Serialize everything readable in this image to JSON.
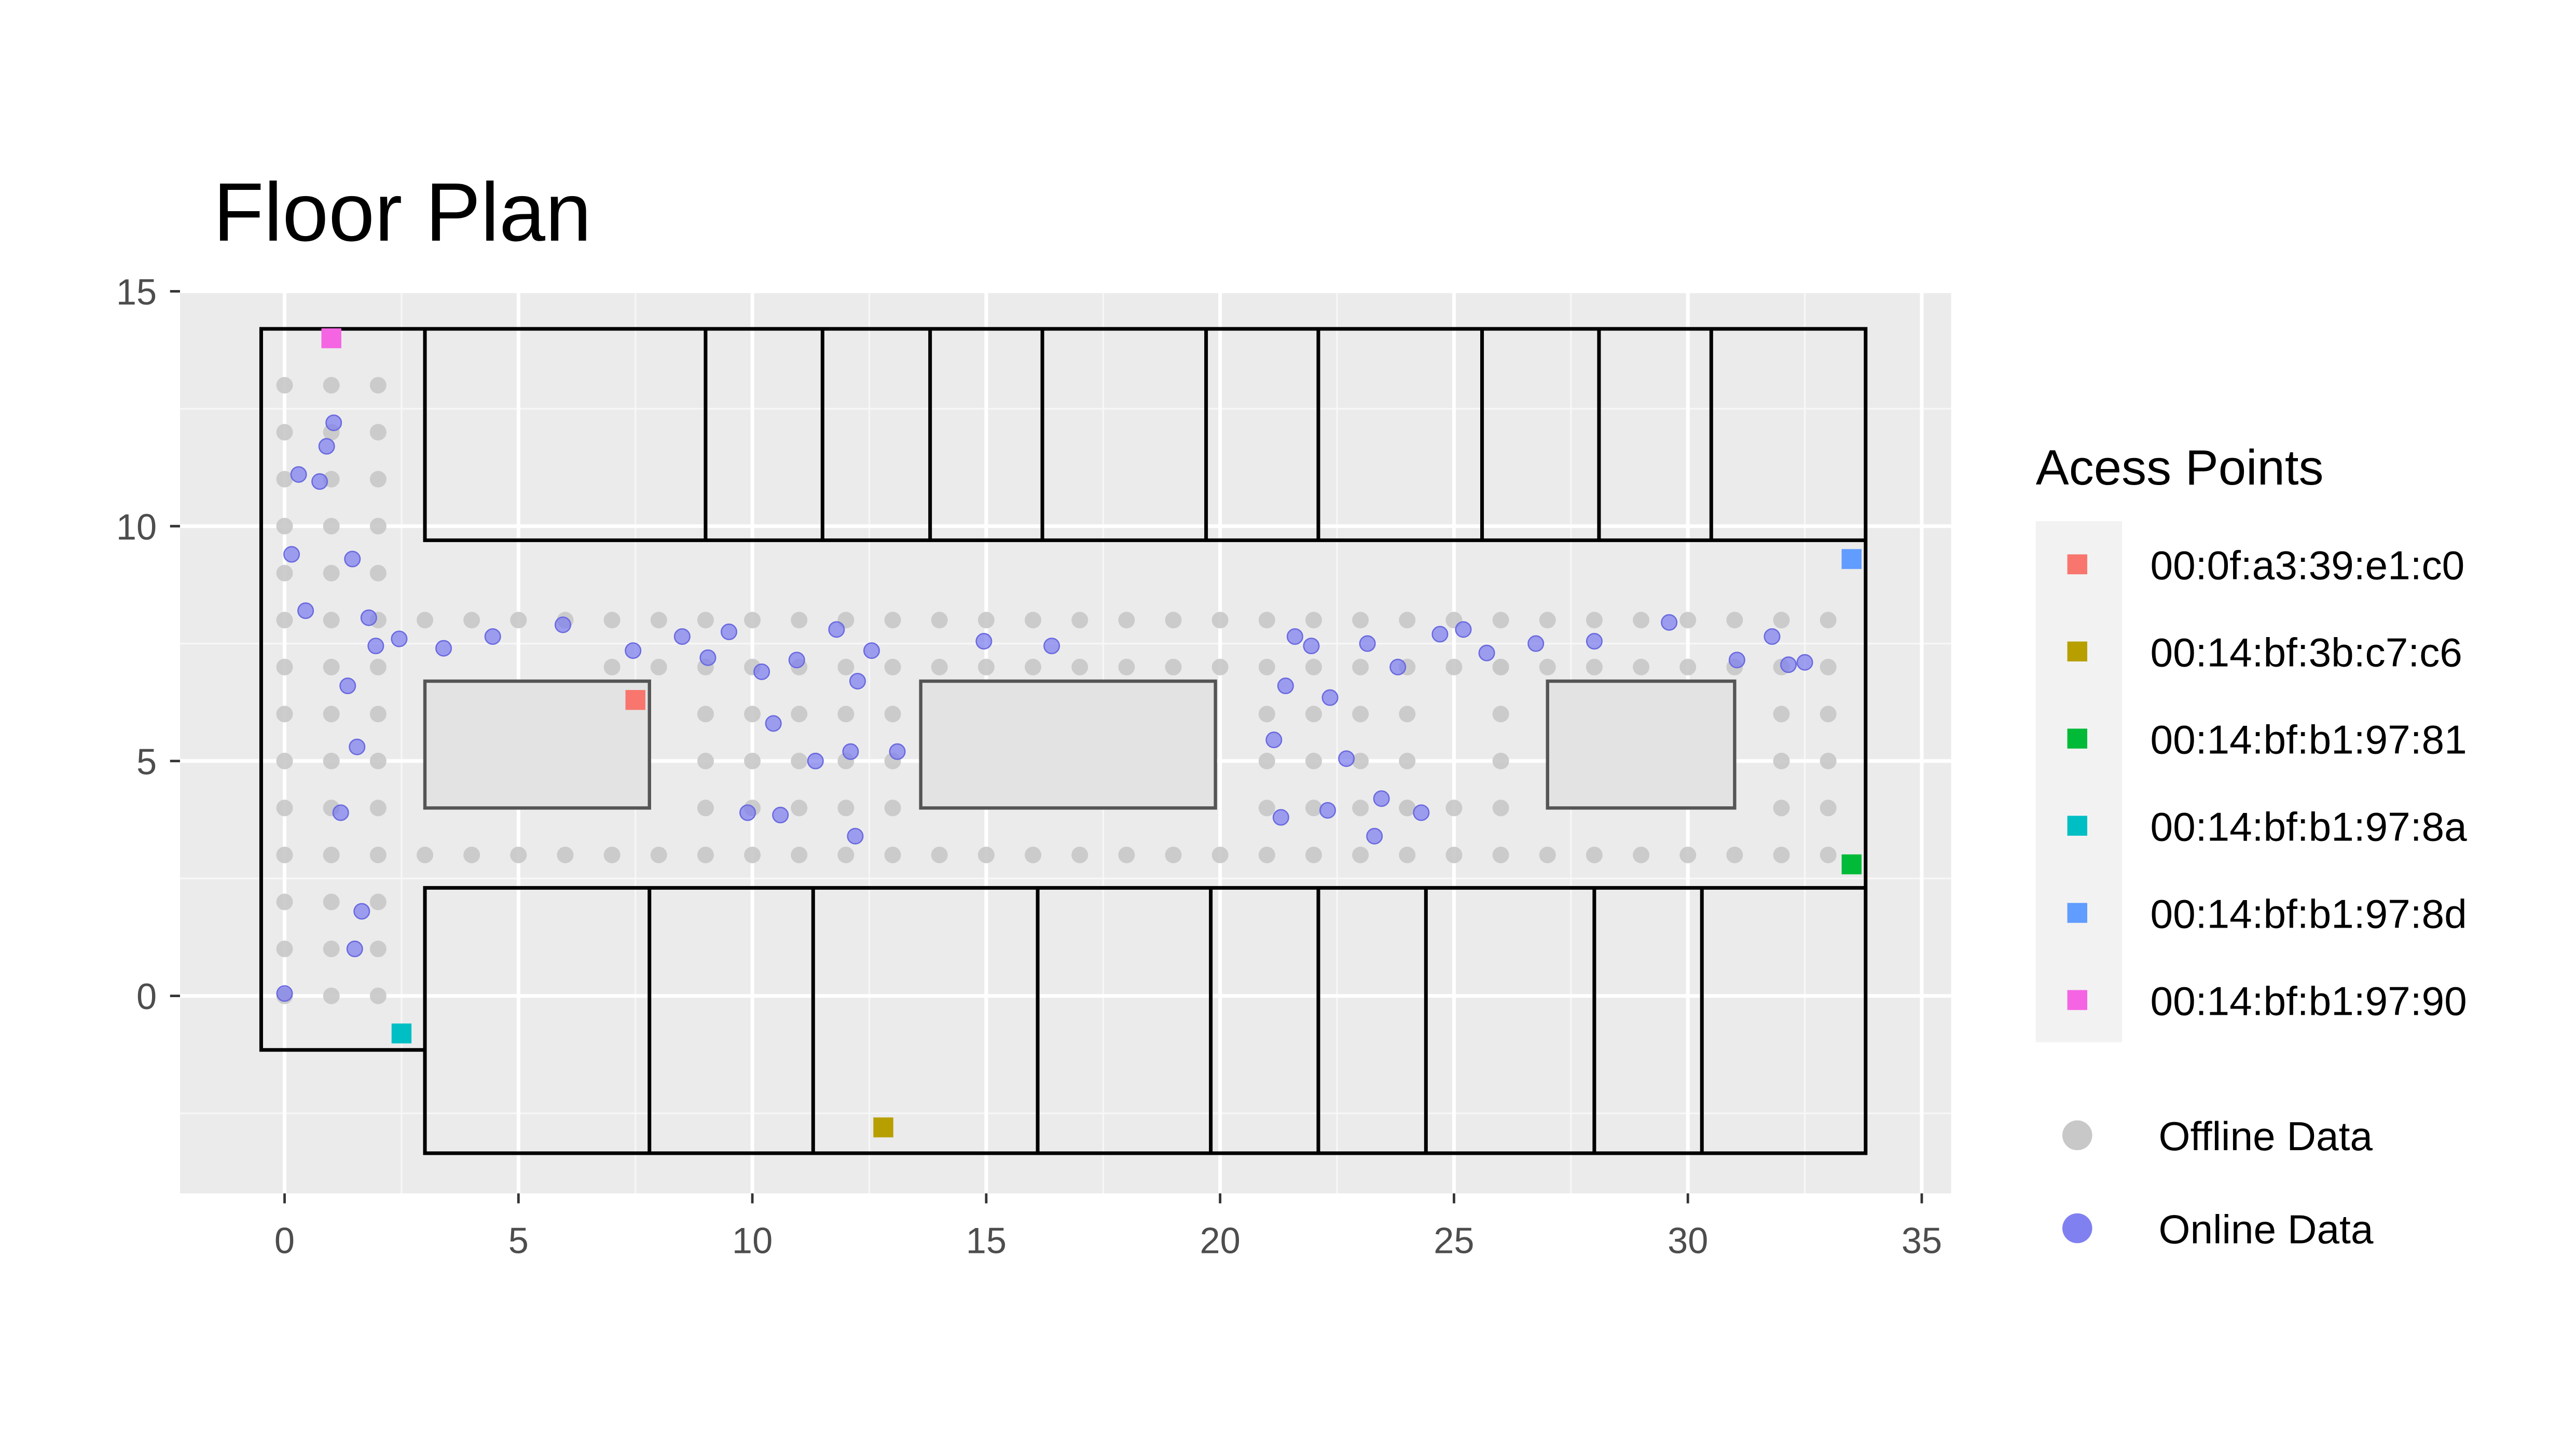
{
  "chart_data": {
    "type": "scatter",
    "title": "Floor Plan",
    "xlabel": "",
    "ylabel": "",
    "xlim": [
      -2.3,
      35.5
    ],
    "ylim": [
      -4.2,
      15.3
    ],
    "x_ticks": [
      0,
      5,
      10,
      15,
      20,
      25,
      30,
      35
    ],
    "y_ticks": [
      0,
      5,
      10,
      15
    ],
    "grid": true,
    "legend_title": "Acess Points",
    "access_points": [
      {
        "mac": "00:0f:a3:39:e1:c0",
        "color": "#F8766D",
        "x": 7.5,
        "y": 6.3
      },
      {
        "mac": "00:14:bf:3b:c7:c6",
        "color": "#B79F00",
        "x": 12.8,
        "y": -2.8
      },
      {
        "mac": "00:14:bf:b1:97:81",
        "color": "#00BA38",
        "x": 33.5,
        "y": 2.8
      },
      {
        "mac": "00:14:bf:b1:97:8a",
        "color": "#00BFC4",
        "x": 2.5,
        "y": -0.8
      },
      {
        "mac": "00:14:bf:b1:97:8d",
        "color": "#619CFF",
        "x": 33.5,
        "y": 9.3
      },
      {
        "mac": "00:14:bf:b1:97:90",
        "color": "#F564E3",
        "x": 1.0,
        "y": 14.0
      }
    ],
    "data_legend": [
      {
        "name": "Offline Data",
        "color": "#c8c8c8"
      },
      {
        "name": "Online Data",
        "color": "#8080f0"
      }
    ],
    "offline_points": [],
    "online_points": [
      [
        0.0,
        0.05
      ],
      [
        0.15,
        9.4
      ],
      [
        0.3,
        11.1
      ],
      [
        0.45,
        8.2
      ],
      [
        0.75,
        10.95
      ],
      [
        0.9,
        11.7
      ],
      [
        1.05,
        12.2
      ],
      [
        1.2,
        3.9
      ],
      [
        1.35,
        6.6
      ],
      [
        1.45,
        9.3
      ],
      [
        1.5,
        1.0
      ],
      [
        1.55,
        5.3
      ],
      [
        1.65,
        1.8
      ],
      [
        1.8,
        8.05
      ],
      [
        1.95,
        7.45
      ],
      [
        2.45,
        7.6
      ],
      [
        3.4,
        7.4
      ],
      [
        4.45,
        7.65
      ],
      [
        5.95,
        7.9
      ],
      [
        7.45,
        7.35
      ],
      [
        8.5,
        7.65
      ],
      [
        9.05,
        7.2
      ],
      [
        9.5,
        7.75
      ],
      [
        9.9,
        3.9
      ],
      [
        10.2,
        6.9
      ],
      [
        10.45,
        5.8
      ],
      [
        10.6,
        3.85
      ],
      [
        10.95,
        7.15
      ],
      [
        11.35,
        5.0
      ],
      [
        11.8,
        7.8
      ],
      [
        12.1,
        5.2
      ],
      [
        12.2,
        3.4
      ],
      [
        12.25,
        6.7
      ],
      [
        12.55,
        7.35
      ],
      [
        13.1,
        5.2
      ],
      [
        14.95,
        7.55
      ],
      [
        16.4,
        7.45
      ],
      [
        21.15,
        5.45
      ],
      [
        21.3,
        3.8
      ],
      [
        21.4,
        6.6
      ],
      [
        21.6,
        7.65
      ],
      [
        21.95,
        7.45
      ],
      [
        22.35,
        6.35
      ],
      [
        22.3,
        3.95
      ],
      [
        22.7,
        5.05
      ],
      [
        23.15,
        7.5
      ],
      [
        23.3,
        3.4
      ],
      [
        23.45,
        4.2
      ],
      [
        23.8,
        7.0
      ],
      [
        24.3,
        3.9
      ],
      [
        24.7,
        7.7
      ],
      [
        25.2,
        7.8
      ],
      [
        25.7,
        7.3
      ],
      [
        26.75,
        7.5
      ],
      [
        28.0,
        7.55
      ],
      [
        29.6,
        7.95
      ],
      [
        31.05,
        7.15
      ],
      [
        31.8,
        7.65
      ],
      [
        32.15,
        7.05
      ],
      [
        32.5,
        7.1
      ]
    ]
  },
  "figure": {
    "title": "Floor Plan",
    "legend_title": "Acess Points"
  }
}
